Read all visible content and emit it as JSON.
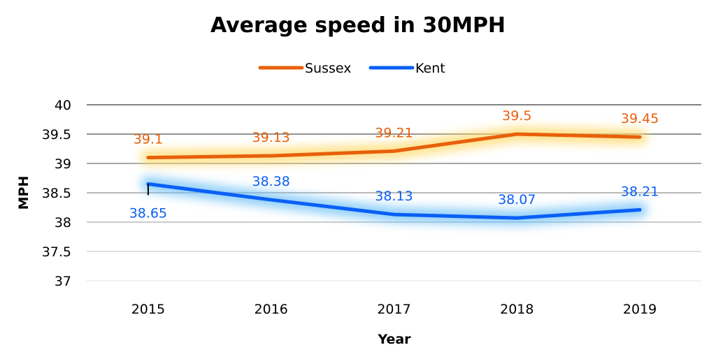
{
  "chart_data": {
    "type": "line",
    "title": "Average speed in 30MPH",
    "xlabel": "Year",
    "ylabel": "MPH",
    "categories": [
      "2015",
      "2016",
      "2017",
      "2018",
      "2019"
    ],
    "ylim": [
      37,
      40
    ],
    "yticks": [
      37,
      37.5,
      38,
      38.5,
      39,
      39.5,
      40
    ],
    "ytick_labels": [
      "37",
      "37.5",
      "38",
      "38.5",
      "39",
      "39.5",
      "40"
    ],
    "grid": true,
    "legend_position": "top-center",
    "series": [
      {
        "name": "Sussex",
        "color": "#E8600A",
        "glow_color": "#FFD966",
        "values": [
          39.1,
          39.13,
          39.21,
          39.5,
          39.45
        ],
        "labels": [
          "39.1",
          "39.13",
          "39.21",
          "39.5",
          "39.45"
        ],
        "label_placement": "above"
      },
      {
        "name": "Kent",
        "color": "#0A5FF5",
        "glow_color": "#6EC1F7",
        "values": [
          38.65,
          38.38,
          38.13,
          38.07,
          38.21
        ],
        "labels": [
          "38.65",
          "38.38",
          "38.13",
          "38.07",
          "38.21"
        ],
        "label_placement": "above-except-first-below"
      }
    ]
  }
}
